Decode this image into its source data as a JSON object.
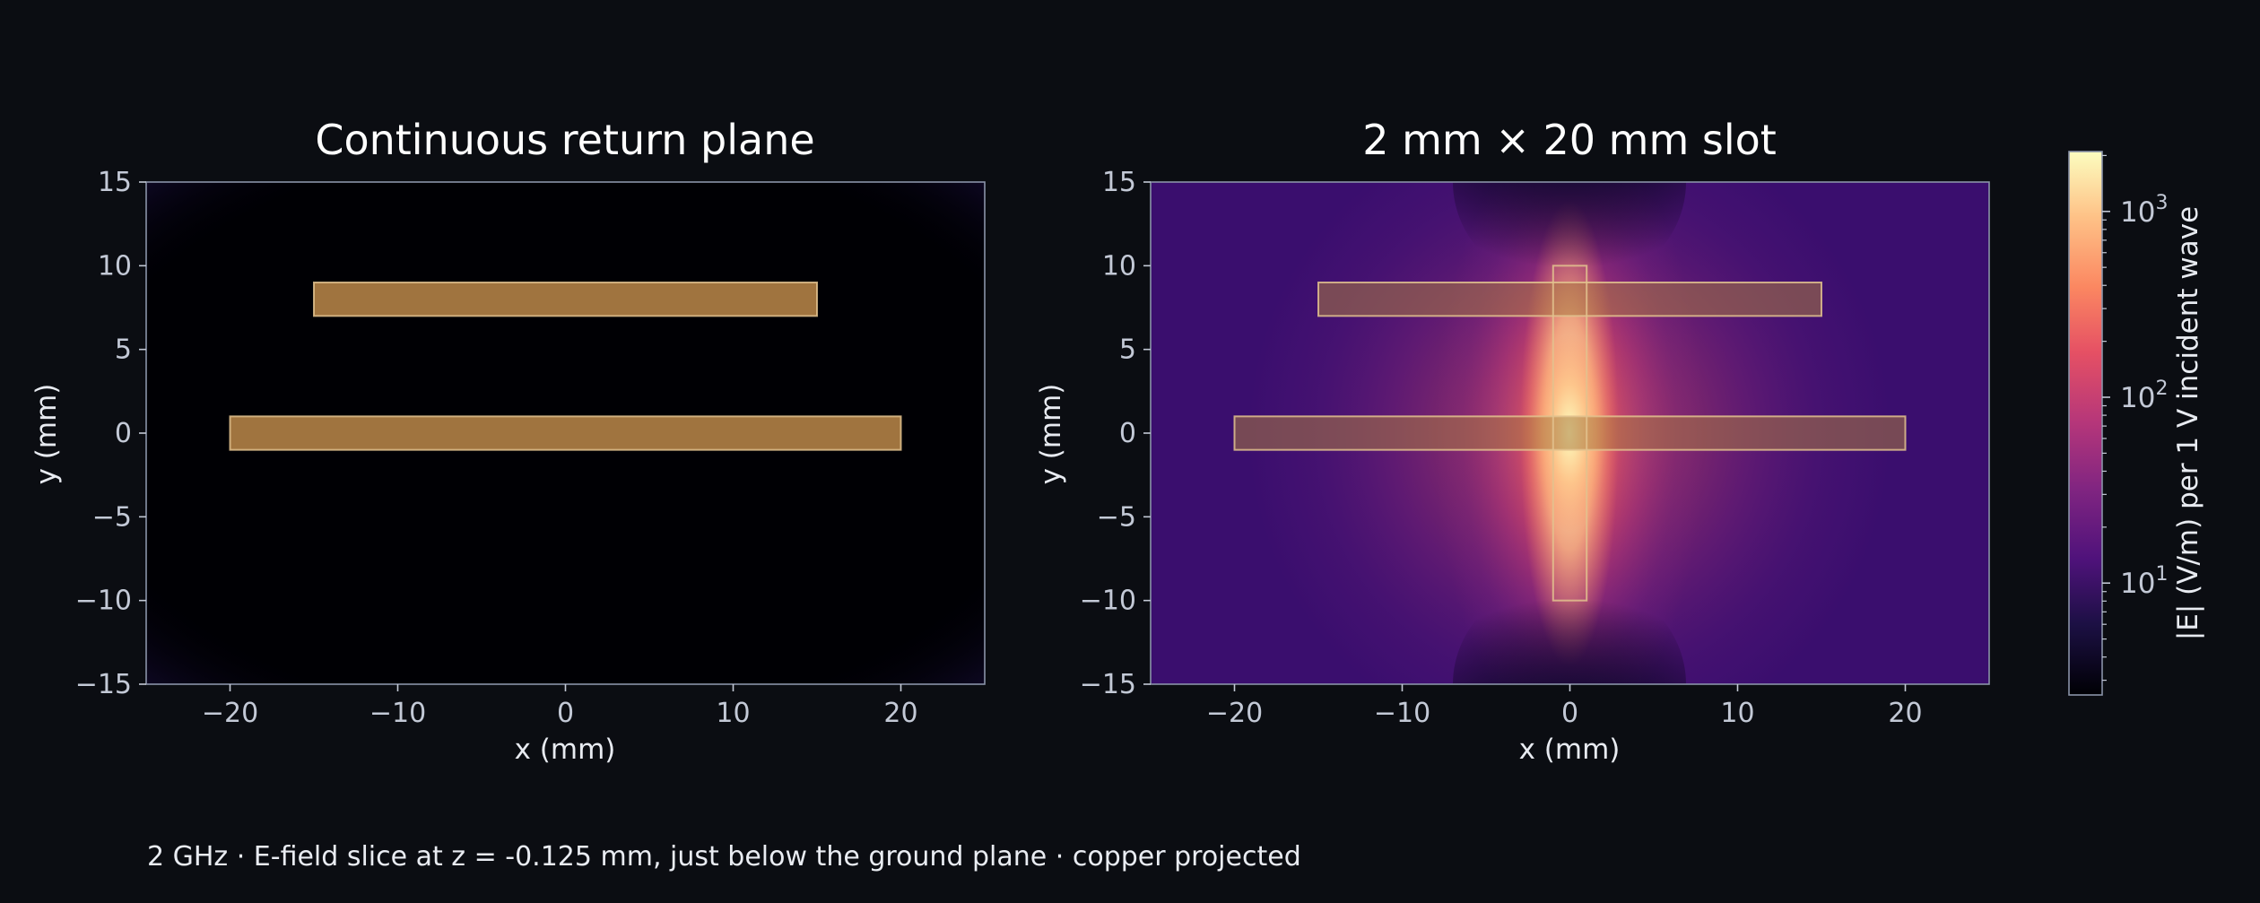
{
  "chart_data": [
    {
      "type": "heatmap",
      "title": "Continuous return plane",
      "xlabel": "x (mm)",
      "ylabel": "y (mm)",
      "xlim": [
        -25,
        25
      ],
      "ylim": [
        -15,
        15
      ],
      "xticks": [
        -20,
        -10,
        0,
        10,
        20
      ],
      "yticks": [
        -15,
        -10,
        -5,
        0,
        5,
        10,
        15
      ],
      "field_model": "near-zero field everywhere (continuous ground plane)",
      "overlays": [
        {
          "label": "trace",
          "x": [
            -15,
            15
          ],
          "y": [
            7,
            9
          ],
          "style": "copper"
        },
        {
          "label": "trace",
          "x": [
            -20,
            20
          ],
          "y": [
            -1,
            1
          ],
          "style": "copper"
        }
      ]
    },
    {
      "type": "heatmap",
      "title": "2 mm × 20 mm slot",
      "xlabel": "x (mm)",
      "ylabel": "y (mm)",
      "xlim": [
        -25,
        25
      ],
      "ylim": [
        -15,
        15
      ],
      "xticks": [
        -20,
        -10,
        0,
        10,
        20
      ],
      "yticks": [
        -15,
        -10,
        -5,
        0,
        5,
        10,
        15
      ],
      "field_model": "strong field concentrated along the slot, peaking at the trace crossings; dark nulls beyond the slot ends",
      "overlays": [
        {
          "label": "trace",
          "x": [
            -15,
            15
          ],
          "y": [
            7,
            9
          ],
          "style": "copper"
        },
        {
          "label": "trace",
          "x": [
            -20,
            20
          ],
          "y": [
            -1,
            1
          ],
          "style": "copper"
        },
        {
          "label": "slot",
          "x": [
            -1,
            1
          ],
          "y": [
            -10,
            10
          ],
          "style": "outline"
        }
      ]
    }
  ],
  "colorbar": {
    "label": "|E| (V/m) per 1 V incident wave",
    "scale": "log",
    "colormap": "magma",
    "range": [
      2.5,
      2100
    ],
    "ticks": [
      {
        "base": "10",
        "exp": "1",
        "value": 10
      },
      {
        "base": "10",
        "exp": "2",
        "value": 100
      },
      {
        "base": "10",
        "exp": "3",
        "value": 1000
      }
    ]
  },
  "caption": "2 GHz · E-field slice at z = -0.125 mm, just below the ground plane · copper projected",
  "colors": {
    "background": "#0b0d12",
    "axes_frame": "#8a93a8",
    "copper_fill": "#a97a42",
    "copper_edge": "#e2c28e"
  }
}
